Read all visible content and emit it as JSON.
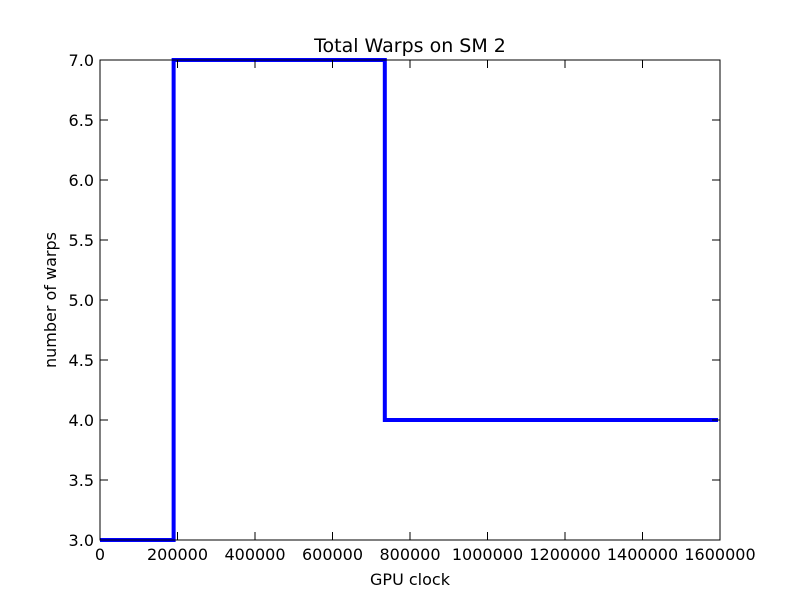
{
  "chart_data": {
    "type": "line",
    "title": "Total Warps on SM 2",
    "xlabel": "GPU clock",
    "ylabel": "number of warps",
    "xlim": [
      0,
      1600000
    ],
    "ylim": [
      3.0,
      7.0
    ],
    "grid": false,
    "legend": "none",
    "line_color": "#0000ff",
    "x_ticks": [
      0,
      200000,
      400000,
      600000,
      800000,
      1000000,
      1200000,
      1400000,
      1600000
    ],
    "x_tick_labels": [
      "0",
      "200000",
      "400000",
      "600000",
      "800000",
      "1000000",
      "1200000",
      "1400000",
      "1600000"
    ],
    "y_ticks": [
      3.0,
      3.5,
      4.0,
      4.5,
      5.0,
      5.5,
      6.0,
      6.5,
      7.0
    ],
    "y_tick_labels": [
      "3.0",
      "3.5",
      "4.0",
      "4.5",
      "5.0",
      "5.5",
      "6.0",
      "6.5",
      "7.0"
    ],
    "series": [
      {
        "name": "Total Warps",
        "x": [
          0,
          190000,
          190000,
          735000,
          735000,
          1595000
        ],
        "y": [
          3,
          3,
          7,
          7,
          4,
          4
        ]
      }
    ]
  }
}
